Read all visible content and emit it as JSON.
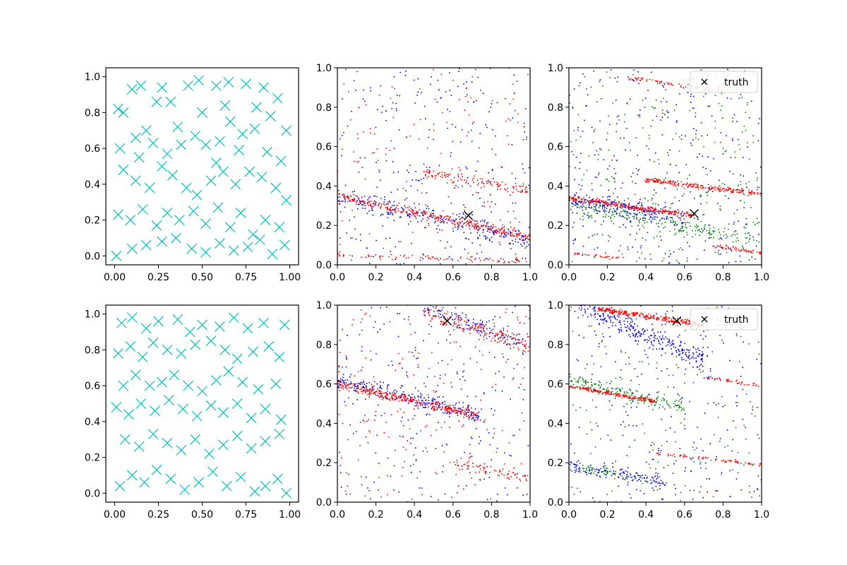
{
  "chart_data": [
    {
      "id": "top-left",
      "type": "scatter",
      "title": "",
      "xlabel": "",
      "ylabel": "",
      "xlim": [
        -0.05,
        1.05
      ],
      "ylim": [
        -0.05,
        1.05
      ],
      "xticks": [
        "0.00",
        "0.25",
        "0.50",
        "0.75",
        "1.00"
      ],
      "yticks": [
        "0.0",
        "0.2",
        "0.4",
        "0.6",
        "0.8",
        "1.0"
      ],
      "marker": "x",
      "color": "#00bfbf",
      "series": [
        {
          "points": [
            [
              0.02,
              0.82
            ],
            [
              0.05,
              0.8
            ],
            [
              0.1,
              0.93
            ],
            [
              0.15,
              0.95
            ],
            [
              0.27,
              0.94
            ],
            [
              0.32,
              0.86
            ],
            [
              0.42,
              0.95
            ],
            [
              0.48,
              0.98
            ],
            [
              0.58,
              0.95
            ],
            [
              0.65,
              0.97
            ],
            [
              0.75,
              0.96
            ],
            [
              0.85,
              0.94
            ],
            [
              0.93,
              0.88
            ],
            [
              0.98,
              0.7
            ],
            [
              0.03,
              0.6
            ],
            [
              0.12,
              0.66
            ],
            [
              0.18,
              0.7
            ],
            [
              0.22,
              0.63
            ],
            [
              0.3,
              0.57
            ],
            [
              0.38,
              0.62
            ],
            [
              0.46,
              0.67
            ],
            [
              0.52,
              0.62
            ],
            [
              0.6,
              0.64
            ],
            [
              0.66,
              0.75
            ],
            [
              0.73,
              0.68
            ],
            [
              0.8,
              0.71
            ],
            [
              0.87,
              0.58
            ],
            [
              0.95,
              0.53
            ],
            [
              0.05,
              0.48
            ],
            [
              0.12,
              0.42
            ],
            [
              0.2,
              0.38
            ],
            [
              0.27,
              0.5
            ],
            [
              0.33,
              0.45
            ],
            [
              0.41,
              0.38
            ],
            [
              0.47,
              0.34
            ],
            [
              0.55,
              0.42
            ],
            [
              0.62,
              0.47
            ],
            [
              0.69,
              0.4
            ],
            [
              0.77,
              0.47
            ],
            [
              0.84,
              0.44
            ],
            [
              0.92,
              0.38
            ],
            [
              0.98,
              0.31
            ],
            [
              0.02,
              0.23
            ],
            [
              0.09,
              0.2
            ],
            [
              0.16,
              0.26
            ],
            [
              0.24,
              0.17
            ],
            [
              0.3,
              0.24
            ],
            [
              0.37,
              0.2
            ],
            [
              0.45,
              0.25
            ],
            [
              0.52,
              0.18
            ],
            [
              0.59,
              0.27
            ],
            [
              0.66,
              0.16
            ],
            [
              0.72,
              0.24
            ],
            [
              0.79,
              0.12
            ],
            [
              0.86,
              0.2
            ],
            [
              0.94,
              0.16
            ],
            [
              0.01,
              0.0
            ],
            [
              0.1,
              0.04
            ],
            [
              0.18,
              0.06
            ],
            [
              0.27,
              0.08
            ],
            [
              0.35,
              0.1
            ],
            [
              0.44,
              0.04
            ],
            [
              0.52,
              0.02
            ],
            [
              0.6,
              0.07
            ],
            [
              0.68,
              0.03
            ],
            [
              0.76,
              0.05
            ],
            [
              0.83,
              0.09
            ],
            [
              0.9,
              0.01
            ],
            [
              0.97,
              0.06
            ],
            [
              0.14,
              0.55
            ],
            [
              0.36,
              0.72
            ],
            [
              0.58,
              0.52
            ],
            [
              0.71,
              0.59
            ],
            [
              0.89,
              0.78
            ],
            [
              0.24,
              0.86
            ],
            [
              0.5,
              0.8
            ],
            [
              0.63,
              0.84
            ],
            [
              0.81,
              0.83
            ]
          ]
        }
      ]
    },
    {
      "id": "top-middle",
      "type": "scatter",
      "title": "",
      "xlabel": "",
      "ylabel": "",
      "xlim": [
        0,
        1
      ],
      "ylim": [
        0,
        1
      ],
      "xticks": [
        "0.0",
        "0.2",
        "0.4",
        "0.6",
        "0.8",
        "1.0"
      ],
      "yticks": [
        "0.0",
        "0.2",
        "0.4",
        "0.6",
        "0.8",
        "1.0"
      ],
      "bands": [
        {
          "color": "#0000ff",
          "x0": 0.0,
          "y0": 0.35,
          "x1": 1.0,
          "y1": 0.12,
          "width": 0.08,
          "n": 260
        },
        {
          "color": "#ff0000",
          "x0": 0.0,
          "y0": 0.35,
          "x1": 1.0,
          "y1": 0.14,
          "width": 0.035,
          "n": 320
        },
        {
          "color": "#ff0000",
          "x0": 0.45,
          "y0": 0.47,
          "x1": 1.0,
          "y1": 0.38,
          "width": 0.04,
          "n": 110
        },
        {
          "color": "#ff0000",
          "x0": 0.0,
          "y0": 0.05,
          "x1": 1.0,
          "y1": 0.02,
          "width": 0.02,
          "n": 80
        }
      ],
      "noise": [
        {
          "color": "#0000ff",
          "n": 260
        },
        {
          "color": "#ff0000",
          "n": 160
        }
      ],
      "truth": [
        [
          0.68,
          0.25
        ]
      ]
    },
    {
      "id": "top-right",
      "type": "scatter",
      "title": "",
      "xlabel": "",
      "ylabel": "",
      "xlim": [
        0,
        1
      ],
      "ylim": [
        0,
        1
      ],
      "xticks": [
        "0.0",
        "0.2",
        "0.4",
        "0.6",
        "0.8",
        "1.0"
      ],
      "yticks": [
        "0.0",
        "0.2",
        "0.4",
        "0.6",
        "0.8",
        "1.0"
      ],
      "legend": {
        "label": "truth",
        "position": "top-right"
      },
      "bands": [
        {
          "color": "#0000ff",
          "x0": 0.0,
          "y0": 0.33,
          "x1": 0.6,
          "y1": 0.23,
          "width": 0.06,
          "n": 220
        },
        {
          "color": "#008000",
          "x0": 0.0,
          "y0": 0.3,
          "x1": 1.0,
          "y1": 0.12,
          "width": 0.07,
          "n": 200
        },
        {
          "color": "#ff0000",
          "x0": 0.0,
          "y0": 0.34,
          "x1": 0.65,
          "y1": 0.25,
          "width": 0.02,
          "n": 260
        },
        {
          "color": "#ff0000",
          "x0": 0.4,
          "y0": 0.43,
          "x1": 1.0,
          "y1": 0.36,
          "width": 0.02,
          "n": 220
        },
        {
          "color": "#ff0000",
          "x0": 0.3,
          "y0": 0.95,
          "x1": 0.8,
          "y1": 0.88,
          "width": 0.015,
          "n": 60
        },
        {
          "color": "#ff0000",
          "x0": 0.75,
          "y0": 0.1,
          "x1": 1.0,
          "y1": 0.06,
          "width": 0.015,
          "n": 50
        },
        {
          "color": "#ff0000",
          "x0": 0.0,
          "y0": 0.06,
          "x1": 0.3,
          "y1": 0.03,
          "width": 0.01,
          "n": 30
        }
      ],
      "noise": [
        {
          "color": "#0000ff",
          "n": 320
        },
        {
          "color": "#008000",
          "n": 260
        }
      ],
      "truth": [
        [
          0.65,
          0.26
        ]
      ]
    },
    {
      "id": "bottom-left",
      "type": "scatter",
      "title": "",
      "xlabel": "",
      "ylabel": "",
      "xlim": [
        -0.05,
        1.05
      ],
      "ylim": [
        -0.05,
        1.05
      ],
      "xticks": [
        "0.00",
        "0.25",
        "0.50",
        "0.75",
        "1.00"
      ],
      "yticks": [
        "0.0",
        "0.2",
        "0.4",
        "0.6",
        "0.8",
        "1.0"
      ],
      "marker": "x",
      "color": "#00bfbf",
      "series": [
        {
          "points": [
            [
              0.04,
              0.95
            ],
            [
              0.1,
              0.98
            ],
            [
              0.18,
              0.92
            ],
            [
              0.25,
              0.96
            ],
            [
              0.36,
              0.97
            ],
            [
              0.43,
              0.9
            ],
            [
              0.5,
              0.94
            ],
            [
              0.6,
              0.93
            ],
            [
              0.68,
              0.98
            ],
            [
              0.76,
              0.92
            ],
            [
              0.85,
              0.95
            ],
            [
              0.97,
              0.94
            ],
            [
              0.02,
              0.78
            ],
            [
              0.09,
              0.82
            ],
            [
              0.16,
              0.76
            ],
            [
              0.22,
              0.84
            ],
            [
              0.3,
              0.8
            ],
            [
              0.38,
              0.78
            ],
            [
              0.46,
              0.83
            ],
            [
              0.55,
              0.85
            ],
            [
              0.63,
              0.8
            ],
            [
              0.7,
              0.75
            ],
            [
              0.79,
              0.79
            ],
            [
              0.88,
              0.82
            ],
            [
              0.94,
              0.76
            ],
            [
              0.05,
              0.6
            ],
            [
              0.12,
              0.66
            ],
            [
              0.2,
              0.6
            ],
            [
              0.27,
              0.62
            ],
            [
              0.34,
              0.66
            ],
            [
              0.42,
              0.6
            ],
            [
              0.5,
              0.57
            ],
            [
              0.58,
              0.63
            ],
            [
              0.65,
              0.68
            ],
            [
              0.73,
              0.62
            ],
            [
              0.82,
              0.58
            ],
            [
              0.92,
              0.61
            ],
            [
              0.01,
              0.48
            ],
            [
              0.08,
              0.44
            ],
            [
              0.15,
              0.5
            ],
            [
              0.23,
              0.46
            ],
            [
              0.31,
              0.52
            ],
            [
              0.39,
              0.47
            ],
            [
              0.47,
              0.43
            ],
            [
              0.55,
              0.49
            ],
            [
              0.62,
              0.45
            ],
            [
              0.7,
              0.5
            ],
            [
              0.78,
              0.42
            ],
            [
              0.86,
              0.47
            ],
            [
              0.95,
              0.41
            ],
            [
              0.06,
              0.3
            ],
            [
              0.14,
              0.26
            ],
            [
              0.22,
              0.33
            ],
            [
              0.3,
              0.28
            ],
            [
              0.38,
              0.24
            ],
            [
              0.46,
              0.3
            ],
            [
              0.54,
              0.22
            ],
            [
              0.62,
              0.27
            ],
            [
              0.7,
              0.32
            ],
            [
              0.78,
              0.25
            ],
            [
              0.86,
              0.29
            ],
            [
              0.94,
              0.33
            ],
            [
              0.03,
              0.04
            ],
            [
              0.1,
              0.1
            ],
            [
              0.17,
              0.06
            ],
            [
              0.24,
              0.13
            ],
            [
              0.32,
              0.08
            ],
            [
              0.4,
              0.02
            ],
            [
              0.48,
              0.06
            ],
            [
              0.56,
              0.12
            ],
            [
              0.64,
              0.04
            ],
            [
              0.72,
              0.09
            ],
            [
              0.8,
              0.01
            ],
            [
              0.86,
              0.04
            ],
            [
              0.93,
              0.08
            ],
            [
              0.98,
              0.0
            ]
          ]
        }
      ]
    },
    {
      "id": "bottom-middle",
      "type": "scatter",
      "title": "",
      "xlabel": "",
      "ylabel": "",
      "xlim": [
        0,
        1
      ],
      "ylim": [
        0,
        1
      ],
      "xticks": [
        "0.0",
        "0.2",
        "0.4",
        "0.6",
        "0.8",
        "1.0"
      ],
      "yticks": [
        "0.0",
        "0.2",
        "0.4",
        "0.6",
        "0.8",
        "1.0"
      ],
      "bands": [
        {
          "color": "#0000ff",
          "x0": 0.0,
          "y0": 0.62,
          "x1": 0.75,
          "y1": 0.44,
          "width": 0.06,
          "n": 240
        },
        {
          "color": "#ff0000",
          "x0": 0.0,
          "y0": 0.6,
          "x1": 0.72,
          "y1": 0.44,
          "width": 0.035,
          "n": 320
        },
        {
          "color": "#0000ff",
          "x0": 0.45,
          "y0": 0.98,
          "x1": 0.95,
          "y1": 0.82,
          "width": 0.07,
          "n": 110
        },
        {
          "color": "#ff0000",
          "x0": 0.45,
          "y0": 0.96,
          "x1": 1.0,
          "y1": 0.8,
          "width": 0.07,
          "n": 170
        },
        {
          "color": "#ff0000",
          "x0": 0.6,
          "y0": 0.2,
          "x1": 1.0,
          "y1": 0.12,
          "width": 0.04,
          "n": 60
        }
      ],
      "noise": [
        {
          "color": "#0000ff",
          "n": 240
        },
        {
          "color": "#ff0000",
          "n": 200
        }
      ],
      "truth": [
        [
          0.57,
          0.92
        ]
      ]
    },
    {
      "id": "bottom-right",
      "type": "scatter",
      "title": "",
      "xlabel": "",
      "ylabel": "",
      "xlim": [
        0,
        1
      ],
      "ylim": [
        0,
        1
      ],
      "xticks": [
        "0.0",
        "0.2",
        "0.4",
        "0.6",
        "0.8",
        "1.0"
      ],
      "yticks": [
        "0.0",
        "0.2",
        "0.4",
        "0.6",
        "0.8",
        "1.0"
      ],
      "legend": {
        "label": "truth",
        "position": "top-right"
      },
      "bands": [
        {
          "color": "#0000ff",
          "x0": 0.05,
          "y0": 1.0,
          "x1": 0.7,
          "y1": 0.72,
          "width": 0.08,
          "n": 300
        },
        {
          "color": "#008000",
          "x0": 0.0,
          "y0": 0.62,
          "x1": 0.6,
          "y1": 0.48,
          "width": 0.05,
          "n": 160
        },
        {
          "color": "#ff0000",
          "x0": 0.15,
          "y0": 0.98,
          "x1": 0.7,
          "y1": 0.9,
          "width": 0.02,
          "n": 260
        },
        {
          "color": "#ff0000",
          "x0": 0.0,
          "y0": 0.59,
          "x1": 0.45,
          "y1": 0.51,
          "width": 0.015,
          "n": 180
        },
        {
          "color": "#ff0000",
          "x0": 0.72,
          "y0": 0.63,
          "x1": 1.0,
          "y1": 0.59,
          "width": 0.012,
          "n": 40
        },
        {
          "color": "#ff0000",
          "x0": 0.45,
          "y0": 0.25,
          "x1": 1.0,
          "y1": 0.19,
          "width": 0.012,
          "n": 70
        },
        {
          "color": "#0000ff",
          "x0": 0.0,
          "y0": 0.19,
          "x1": 0.5,
          "y1": 0.1,
          "width": 0.05,
          "n": 120
        },
        {
          "color": "#008000",
          "x0": 0.0,
          "y0": 0.18,
          "x1": 0.4,
          "y1": 0.12,
          "width": 0.04,
          "n": 60
        }
      ],
      "noise": [
        {
          "color": "#0000ff",
          "n": 260
        },
        {
          "color": "#008000",
          "n": 160
        }
      ],
      "truth": [
        [
          0.56,
          0.92
        ]
      ]
    }
  ]
}
